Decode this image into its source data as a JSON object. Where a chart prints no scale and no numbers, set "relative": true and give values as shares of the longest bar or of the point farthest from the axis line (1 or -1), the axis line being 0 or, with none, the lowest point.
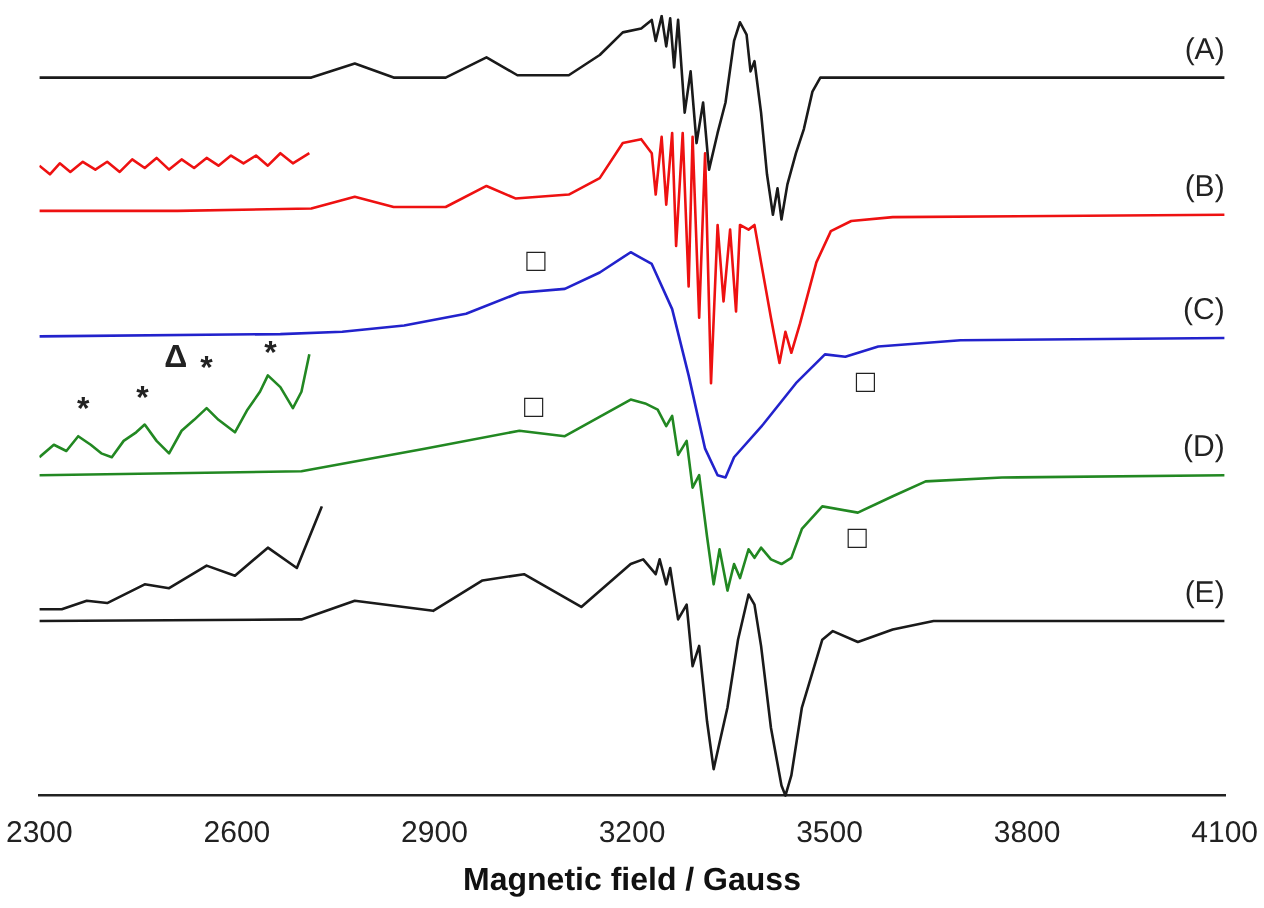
{
  "chart_data": {
    "type": "line",
    "relative": true,
    "xlabel": "Magnetic field / Gauss",
    "xlim": [
      2300,
      4100
    ],
    "xticks": [
      2300,
      2600,
      2900,
      3200,
      3500,
      3800,
      4100
    ],
    "grid": false,
    "legend": false,
    "marker": "none",
    "line_style": "solid",
    "series": [
      {
        "name": "(A)",
        "color": "#1a1a1a",
        "x": [
          2300,
          2713,
          2779,
          2838,
          2917,
          2979,
          3026,
          3104,
          3151,
          3186,
          3214,
          3230,
          3236,
          3245,
          3252,
          3258,
          3264,
          3270,
          3280,
          3289,
          3298,
          3308,
          3317,
          3330,
          3342,
          3355,
          3364,
          3374,
          3380,
          3386,
          3396,
          3405,
          3414,
          3421,
          3427,
          3436,
          3449,
          3461,
          3474,
          3486,
          4100
        ],
        "values": [
          0.921,
          0.921,
          0.939,
          0.921,
          0.921,
          0.947,
          0.924,
          0.924,
          0.95,
          0.979,
          0.984,
          0.995,
          0.968,
          1,
          0.961,
          0.997,
          0.934,
          0.995,
          0.876,
          0.929,
          0.837,
          0.889,
          0.803,
          0.85,
          0.889,
          0.968,
          0.992,
          0.976,
          0.929,
          0.942,
          0.876,
          0.797,
          0.745,
          0.779,
          0.739,
          0.784,
          0.824,
          0.855,
          0.903,
          0.921,
          0.921
        ]
      },
      {
        "name": "(B)",
        "color": "#ee1111",
        "x": [
          2300,
          2510,
          2713,
          2779,
          2838,
          2917,
          2979,
          3023,
          3104,
          3151,
          3186,
          3214,
          3230,
          3236,
          3245,
          3252,
          3261,
          3267,
          3277,
          3286,
          3292,
          3302,
          3311,
          3320,
          3330,
          3339,
          3349,
          3358,
          3364,
          3377,
          3386,
          3396,
          3411,
          3424,
          3433,
          3442,
          3455,
          3480,
          3502,
          3533,
          3596,
          4100
        ],
        "values": [
          0.75,
          0.75,
          0.753,
          0.768,
          0.755,
          0.755,
          0.782,
          0.766,
          0.771,
          0.792,
          0.837,
          0.842,
          0.824,
          0.771,
          0.845,
          0.758,
          0.85,
          0.705,
          0.85,
          0.653,
          0.845,
          0.613,
          0.824,
          0.529,
          0.732,
          0.634,
          0.726,
          0.621,
          0.732,
          0.726,
          0.732,
          0.684,
          0.613,
          0.555,
          0.595,
          0.568,
          0.605,
          0.684,
          0.724,
          0.737,
          0.742,
          0.745
        ]
      },
      {
        "color": "#ee1111",
        "x": [
          2300,
          2316,
          2331,
          2347,
          2366,
          2385,
          2403,
          2422,
          2441,
          2460,
          2478,
          2497,
          2516,
          2535,
          2554,
          2572,
          2591,
          2610,
          2629,
          2647,
          2666,
          2685,
          2710
        ],
        "values": [
          0.808,
          0.797,
          0.811,
          0.8,
          0.813,
          0.803,
          0.813,
          0.8,
          0.816,
          0.805,
          0.818,
          0.803,
          0.816,
          0.805,
          0.818,
          0.808,
          0.821,
          0.811,
          0.821,
          0.808,
          0.824,
          0.811,
          0.824
        ]
      },
      {
        "name": "(C)",
        "color": "#2222cc",
        "x": [
          2300,
          2666,
          2760,
          2854,
          2948,
          3029,
          3098,
          3151,
          3198,
          3230,
          3261,
          3286,
          3311,
          3330,
          3342,
          3355,
          3399,
          3449,
          3493,
          3524,
          3574,
          3699,
          4100
        ],
        "values": [
          0.589,
          0.592,
          0.595,
          0.603,
          0.618,
          0.645,
          0.65,
          0.671,
          0.697,
          0.682,
          0.624,
          0.539,
          0.445,
          0.411,
          0.408,
          0.434,
          0.476,
          0.529,
          0.566,
          0.563,
          0.576,
          0.584,
          0.587
        ]
      },
      {
        "name": "(D)",
        "color": "#228822",
        "x": [
          2300,
          2698,
          2885,
          3029,
          3098,
          3198,
          3220,
          3239,
          3252,
          3261,
          3270,
          3283,
          3292,
          3302,
          3314,
          3324,
          3333,
          3345,
          3355,
          3364,
          3377,
          3386,
          3396,
          3411,
          3427,
          3442,
          3458,
          3489,
          3543,
          3596,
          3646,
          3762,
          4100
        ],
        "values": [
          0.411,
          0.416,
          0.445,
          0.468,
          0.461,
          0.508,
          0.503,
          0.495,
          0.474,
          0.487,
          0.437,
          0.455,
          0.395,
          0.411,
          0.332,
          0.271,
          0.316,
          0.263,
          0.297,
          0.279,
          0.316,
          0.305,
          0.318,
          0.303,
          0.297,
          0.305,
          0.342,
          0.371,
          0.363,
          0.384,
          0.403,
          0.408,
          0.411
        ]
      },
      {
        "color": "#228822",
        "x": [
          2300,
          2322,
          2341,
          2359,
          2378,
          2394,
          2410,
          2428,
          2447,
          2460,
          2478,
          2497,
          2516,
          2535,
          2554,
          2572,
          2597,
          2616,
          2635,
          2647,
          2666,
          2685,
          2698,
          2710
        ],
        "values": [
          0.434,
          0.45,
          0.442,
          0.461,
          0.45,
          0.439,
          0.434,
          0.455,
          0.466,
          0.476,
          0.455,
          0.439,
          0.468,
          0.482,
          0.497,
          0.482,
          0.466,
          0.495,
          0.518,
          0.539,
          0.524,
          0.497,
          0.518,
          0.566
        ]
      },
      {
        "name": "(E)",
        "color": "#1a1a1a",
        "x": [
          2300,
          2698,
          2779,
          2898,
          2973,
          3036,
          3123,
          3198,
          3217,
          3236,
          3242,
          3252,
          3258,
          3270,
          3283,
          3292,
          3302,
          3314,
          3324,
          3333,
          3345,
          3361,
          3377,
          3386,
          3396,
          3411,
          3427,
          3433,
          3442,
          3458,
          3489,
          3505,
          3543,
          3596,
          3658,
          4100
        ],
        "values": [
          0.224,
          0.226,
          0.25,
          0.237,
          0.276,
          0.284,
          0.242,
          0.297,
          0.303,
          0.284,
          0.303,
          0.271,
          0.292,
          0.226,
          0.245,
          0.166,
          0.192,
          0.095,
          0.034,
          0.068,
          0.113,
          0.2,
          0.258,
          0.245,
          0.192,
          0.087,
          0.013,
          0,
          0.026,
          0.113,
          0.2,
          0.211,
          0.197,
          0.213,
          0.224,
          0.224
        ]
      },
      {
        "color": "#1a1a1a",
        "x": [
          2300,
          2334,
          2372,
          2403,
          2460,
          2497,
          2554,
          2597,
          2647,
          2691,
          2729
        ],
        "values": [
          0.239,
          0.239,
          0.25,
          0.247,
          0.271,
          0.266,
          0.295,
          0.282,
          0.318,
          0.292,
          0.371
        ]
      }
    ],
    "annotations": [
      "□",
      "□",
      "□",
      "□",
      "*",
      "*",
      "*",
      "*",
      "Δ"
    ]
  }
}
